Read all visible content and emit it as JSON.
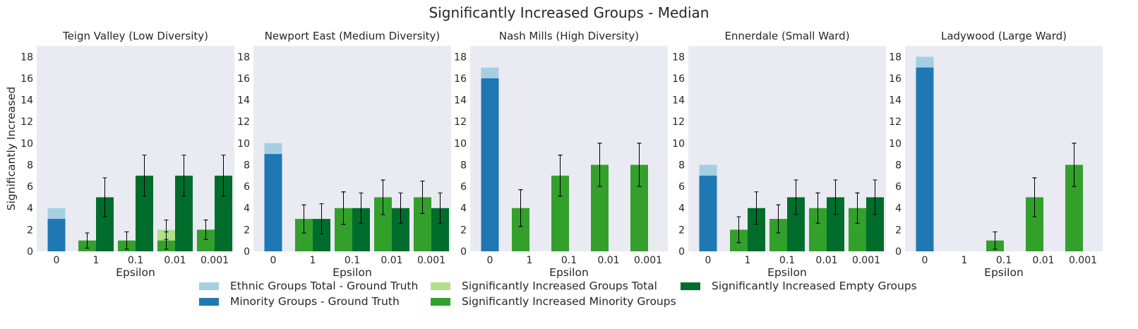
{
  "figure": {
    "title": "Significantly Increased Groups  - Median"
  },
  "colors": {
    "background": "#eaeaf2",
    "gt_total": "#a6cee3",
    "gt_minority": "#1f78b4",
    "sig_total": "#b2df8a",
    "sig_minority": "#33a02c",
    "sig_empty": "#006d2c"
  },
  "legend": [
    {
      "label": "Ethnic Groups Total - Ground Truth",
      "color": "#a6cee3"
    },
    {
      "label": "Significantly Increased Groups Total",
      "color": "#b2df8a"
    },
    {
      "label": "Significantly Increased Empty Groups",
      "color": "#006d2c"
    },
    {
      "label": "Minority Groups - Ground Truth",
      "color": "#1f78b4"
    },
    {
      "label": "Significantly Increased Minority Groups",
      "color": "#33a02c"
    }
  ],
  "chart_data": [
    {
      "type": "bar",
      "title": "Teign Valley (Low Diversity)",
      "xlabel": "Epsilon",
      "ylabel": "Significantly Increased",
      "categories": [
        "0",
        "1",
        "0.1",
        "0.01",
        "0.001"
      ],
      "ylim": [
        0,
        19
      ],
      "yticks": [
        0,
        2,
        4,
        6,
        8,
        10,
        12,
        14,
        16,
        18
      ],
      "ground_truth": {
        "total": 4,
        "minority": 3
      },
      "series": [
        {
          "name": "Significantly Increased Groups Total",
          "values": [
            null,
            1,
            1,
            2,
            2
          ],
          "errors": [
            null,
            0.7,
            0.8,
            0.9,
            0.9
          ]
        },
        {
          "name": "Significantly Increased Minority Groups",
          "values": [
            null,
            1,
            1,
            1,
            2
          ],
          "errors": [
            null,
            0.7,
            0.8,
            0.8,
            0.9
          ]
        },
        {
          "name": "Significantly Increased Empty Groups",
          "values": [
            null,
            5,
            7,
            7,
            7
          ],
          "errors": [
            null,
            1.8,
            1.9,
            1.9,
            1.9
          ]
        }
      ]
    },
    {
      "type": "bar",
      "title": "Newport East (Medium Diversity)",
      "xlabel": "Epsilon",
      "ylabel": "",
      "categories": [
        "0",
        "1",
        "0.1",
        "0.01",
        "0.001"
      ],
      "ylim": [
        0,
        19
      ],
      "yticks": [
        0,
        2,
        4,
        6,
        8,
        10,
        12,
        14,
        16,
        18
      ],
      "ground_truth": {
        "total": 10,
        "minority": 9
      },
      "series": [
        {
          "name": "Significantly Increased Groups Total",
          "values": [
            null,
            3,
            4,
            5,
            5
          ],
          "errors": [
            null,
            1.3,
            1.5,
            1.6,
            1.5
          ]
        },
        {
          "name": "Significantly Increased Minority Groups",
          "values": [
            null,
            3,
            4,
            5,
            5
          ],
          "errors": [
            null,
            1.3,
            1.5,
            1.6,
            1.5
          ]
        },
        {
          "name": "Significantly Increased Empty Groups",
          "values": [
            null,
            3,
            4,
            4,
            4
          ],
          "errors": [
            null,
            1.4,
            1.4,
            1.4,
            1.4
          ]
        }
      ]
    },
    {
      "type": "bar",
      "title": "Nash Mills (High Diversity)",
      "xlabel": "Epsilon",
      "ylabel": "",
      "categories": [
        "0",
        "1",
        "0.1",
        "0.01",
        "0.001"
      ],
      "ylim": [
        0,
        19
      ],
      "yticks": [
        0,
        2,
        4,
        6,
        8,
        10,
        12,
        14,
        16,
        18
      ],
      "ground_truth": {
        "total": 17,
        "minority": 16
      },
      "series": [
        {
          "name": "Significantly Increased Groups Total",
          "values": [
            null,
            4,
            7,
            8,
            8
          ],
          "errors": [
            null,
            1.7,
            1.9,
            2.0,
            2.0
          ]
        },
        {
          "name": "Significantly Increased Minority Groups",
          "values": [
            null,
            4,
            7,
            8,
            8
          ],
          "errors": [
            null,
            1.7,
            1.9,
            2.0,
            2.0
          ]
        },
        {
          "name": "Significantly Increased Empty Groups",
          "values": [
            null,
            0,
            0,
            0,
            0
          ],
          "errors": [
            null,
            null,
            null,
            null,
            null
          ]
        }
      ]
    },
    {
      "type": "bar",
      "title": "Ennerdale (Small Ward)",
      "xlabel": "Epsilon",
      "ylabel": "",
      "categories": [
        "0",
        "1",
        "0.1",
        "0.01",
        "0.001"
      ],
      "ylim": [
        0,
        19
      ],
      "yticks": [
        0,
        2,
        4,
        6,
        8,
        10,
        12,
        14,
        16,
        18
      ],
      "ground_truth": {
        "total": 8,
        "minority": 7
      },
      "series": [
        {
          "name": "Significantly Increased Groups Total",
          "values": [
            null,
            2,
            3,
            4,
            4
          ],
          "errors": [
            null,
            1.2,
            1.3,
            1.4,
            1.4
          ]
        },
        {
          "name": "Significantly Increased Minority Groups",
          "values": [
            null,
            2,
            3,
            4,
            4
          ],
          "errors": [
            null,
            1.2,
            1.3,
            1.4,
            1.4
          ]
        },
        {
          "name": "Significantly Increased Empty Groups",
          "values": [
            null,
            4,
            5,
            5,
            5
          ],
          "errors": [
            null,
            1.5,
            1.6,
            1.6,
            1.6
          ]
        }
      ]
    },
    {
      "type": "bar",
      "title": "Ladywood (Large Ward)",
      "xlabel": "Epsilon",
      "ylabel": "",
      "categories": [
        "0",
        "1",
        "0.1",
        "0.01",
        "0.001"
      ],
      "ylim": [
        0,
        19
      ],
      "yticks": [
        0,
        2,
        4,
        6,
        8,
        10,
        12,
        14,
        16,
        18
      ],
      "ground_truth": {
        "total": 18,
        "minority": 17
      },
      "series": [
        {
          "name": "Significantly Increased Groups Total",
          "values": [
            null,
            0,
            1,
            5,
            8
          ],
          "errors": [
            null,
            null,
            0.8,
            1.8,
            2.0
          ]
        },
        {
          "name": "Significantly Increased Minority Groups",
          "values": [
            null,
            0,
            1,
            5,
            8
          ],
          "errors": [
            null,
            null,
            0.8,
            1.8,
            2.0
          ]
        },
        {
          "name": "Significantly Increased Empty Groups",
          "values": [
            null,
            0,
            0,
            0,
            0
          ],
          "errors": [
            null,
            null,
            null,
            null,
            null
          ]
        }
      ]
    }
  ]
}
